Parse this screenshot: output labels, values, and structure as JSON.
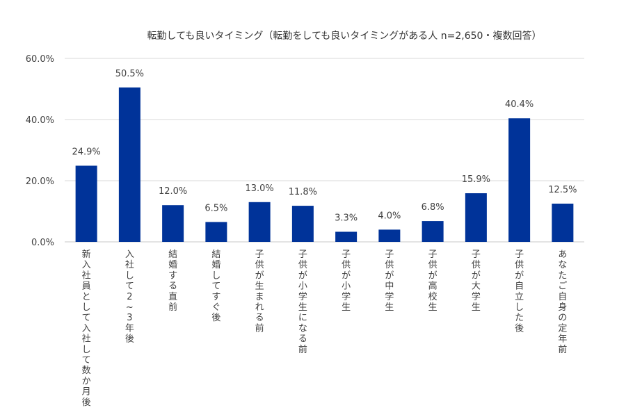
{
  "chart_data": {
    "type": "bar",
    "title": "転勤しても良いタイミング（転勤をしても良いタイミングがある人 n=2,650・複数回答）",
    "xlabel": "",
    "ylabel": "",
    "ylim": [
      0,
      60
    ],
    "yticks": [
      0,
      20,
      40,
      60
    ],
    "ytick_labels": [
      "0.0%",
      "20.0%",
      "40.0%",
      "60.0%"
    ],
    "grid": true,
    "legend": "none",
    "bar_color": "#003399",
    "categories": [
      "新入社員として入社して数か月後",
      "入社して2〜3年後",
      "結婚する直前",
      "結婚してすぐ後",
      "子供が生まれる前",
      "子供が小学生になる前",
      "子供が小学生",
      "子供が中学生",
      "子供が高校生",
      "子供が大学生",
      "子供が自立した後",
      "あなたご自身の定年前"
    ],
    "values": [
      24.9,
      50.5,
      12.0,
      6.5,
      13.0,
      11.8,
      3.3,
      4.0,
      6.8,
      15.9,
      40.4,
      12.5
    ],
    "value_labels": [
      "24.9%",
      "50.5%",
      "12.0%",
      "6.5%",
      "13.0%",
      "11.8%",
      "3.3%",
      "4.0%",
      "6.8%",
      "15.9%",
      "40.4%",
      "12.5%"
    ]
  }
}
